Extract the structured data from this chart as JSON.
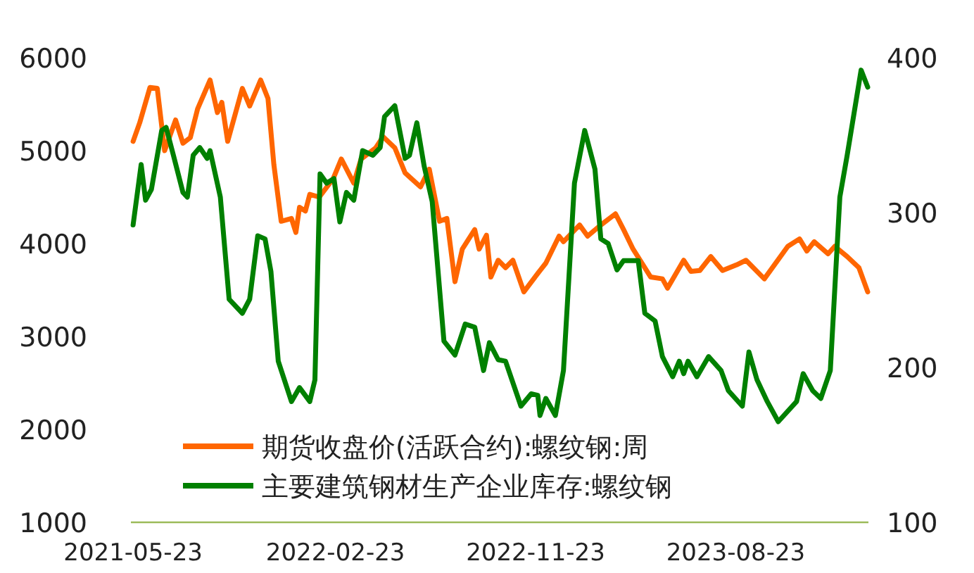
{
  "chart_data": {
    "type": "line",
    "legend": "bottom",
    "grid": false,
    "xlim": [
      "2021-05-20",
      "2024-02-20"
    ],
    "xticks": [
      "2021-05-23",
      "2022-02-23",
      "2022-11-23",
      "2023-08-23"
    ],
    "ylim": [
      1000,
      6000
    ],
    "yticks": [
      1000,
      2000,
      3000,
      4000,
      5000,
      6000
    ],
    "y2lim": [
      100,
      400
    ],
    "y2ticks": [
      100,
      200,
      300,
      400
    ],
    "series": [
      {
        "name": "期货收盘价(活跃合约):螺纹钢:周",
        "color": "#ff6600",
        "axis": "y",
        "x": [
          "2021-05-23",
          "2021-06-01",
          "2021-06-15",
          "2021-06-25",
          "2021-07-05",
          "2021-07-20",
          "2021-07-30",
          "2021-08-09",
          "2021-08-19",
          "2021-09-05",
          "2021-09-15",
          "2021-09-21",
          "2021-09-29",
          "2021-10-19",
          "2021-10-29",
          "2021-11-13",
          "2021-11-23",
          "2021-12-01",
          "2021-12-11",
          "2021-12-25",
          "2021-12-31",
          "2022-01-05",
          "2022-01-13",
          "2022-01-19",
          "2022-02-01",
          "2022-02-20",
          "2022-03-03",
          "2022-03-20",
          "2022-03-30",
          "2022-04-19",
          "2022-04-29",
          "2022-05-15",
          "2022-05-29",
          "2022-06-19",
          "2022-07-01",
          "2022-07-15",
          "2022-07-25",
          "2022-08-05",
          "2022-08-15",
          "2022-09-01",
          "2022-09-07",
          "2022-09-17",
          "2022-09-23",
          "2022-10-03",
          "2022-10-13",
          "2022-10-23",
          "2022-11-07",
          "2022-11-29",
          "2022-12-07",
          "2022-12-25",
          "2022-12-31",
          "2023-01-22",
          "2023-02-02",
          "2023-02-20",
          "2023-03-12",
          "2023-03-23",
          "2023-04-05",
          "2023-04-29",
          "2023-05-15",
          "2023-05-22",
          "2023-06-13",
          "2023-06-23",
          "2023-07-05",
          "2023-07-20",
          "2023-08-05",
          "2023-08-24",
          "2023-09-06",
          "2023-10-01",
          "2023-11-02",
          "2023-11-18",
          "2023-11-28",
          "2023-12-08",
          "2023-12-27",
          "2024-01-05",
          "2024-01-22",
          "2024-02-07",
          "2024-02-19"
        ],
        "values": [
          5100,
          5300,
          5680,
          5670,
          5000,
          5330,
          5080,
          5140,
          5450,
          5760,
          5410,
          5520,
          5100,
          5670,
          5480,
          5760,
          5560,
          4850,
          4240,
          4270,
          4120,
          4390,
          4350,
          4530,
          4500,
          4700,
          4910,
          4650,
          4910,
          5030,
          5150,
          5030,
          4760,
          4610,
          4800,
          4240,
          4270,
          3590,
          3940,
          4150,
          3940,
          4090,
          3640,
          3820,
          3740,
          3820,
          3480,
          3710,
          3790,
          4080,
          4020,
          4200,
          4080,
          4200,
          4320,
          4150,
          3940,
          3640,
          3620,
          3520,
          3820,
          3700,
          3710,
          3860,
          3710,
          3770,
          3820,
          3620,
          3970,
          4050,
          3920,
          4020,
          3890,
          3970,
          3860,
          3740,
          3480
        ]
      },
      {
        "name": "主要建筑钢材生产企业库存:螺纹钢",
        "color": "#008000",
        "axis": "y2",
        "x": [
          "2021-05-23",
          "2021-06-03",
          "2021-06-09",
          "2021-06-17",
          "2021-07-01",
          "2021-07-07",
          "2021-07-17",
          "2021-07-30",
          "2021-08-05",
          "2021-08-13",
          "2021-08-22",
          "2021-09-01",
          "2021-09-05",
          "2021-09-19",
          "2021-10-01",
          "2021-10-19",
          "2021-10-29",
          "2021-11-09",
          "2021-11-19",
          "2021-11-27",
          "2021-12-07",
          "2021-12-25",
          "2022-01-05",
          "2022-01-19",
          "2022-01-26",
          "2022-02-02",
          "2022-02-11",
          "2022-02-21",
          "2022-03-01",
          "2022-03-10",
          "2022-03-20",
          "2022-04-01",
          "2022-04-15",
          "2022-04-25",
          "2022-05-01",
          "2022-05-15",
          "2022-05-29",
          "2022-06-04",
          "2022-06-14",
          "2022-06-24",
          "2022-07-05",
          "2022-07-21",
          "2022-08-05",
          "2022-08-19",
          "2022-09-01",
          "2022-09-13",
          "2022-09-21",
          "2022-10-03",
          "2022-10-13",
          "2022-11-03",
          "2022-11-17",
          "2022-11-26",
          "2022-11-29",
          "2022-12-07",
          "2022-12-20",
          "2022-12-31",
          "2023-01-15",
          "2023-01-29",
          "2023-02-12",
          "2023-02-20",
          "2023-03-02",
          "2023-03-14",
          "2023-03-23",
          "2023-04-12",
          "2023-04-21",
          "2023-05-05",
          "2023-05-15",
          "2023-05-29",
          "2023-06-07",
          "2023-06-13",
          "2023-06-19",
          "2023-07-01",
          "2023-07-17",
          "2023-08-03",
          "2023-08-13",
          "2023-09-01",
          "2023-09-10",
          "2023-09-21",
          "2023-10-05",
          "2023-10-20",
          "2023-11-14",
          "2023-11-23",
          "2023-12-06",
          "2023-12-17",
          "2023-12-30",
          "2024-01-12",
          "2024-01-22",
          "2024-02-10",
          "2024-02-19"
        ],
        "values": [
          292,
          331,
          308,
          315,
          353,
          355,
          337,
          313,
          310,
          337,
          342,
          335,
          340,
          310,
          244,
          235,
          244,
          285,
          283,
          262,
          204,
          178,
          187,
          178,
          192,
          325,
          319,
          322,
          294,
          313,
          308,
          340,
          337,
          342,
          362,
          369,
          335,
          337,
          358,
          330,
          307,
          217,
          208,
          228,
          226,
          198,
          216,
          205,
          204,
          175,
          183,
          182,
          169,
          180,
          169,
          198,
          319,
          353,
          328,
          283,
          280,
          263,
          269,
          269,
          235,
          230,
          207,
          194,
          204,
          196,
          204,
          194,
          207,
          198,
          185,
          175,
          210,
          192,
          178,
          165,
          178,
          196,
          185,
          180,
          198,
          310,
          337,
          392,
          381
        ]
      }
    ]
  }
}
